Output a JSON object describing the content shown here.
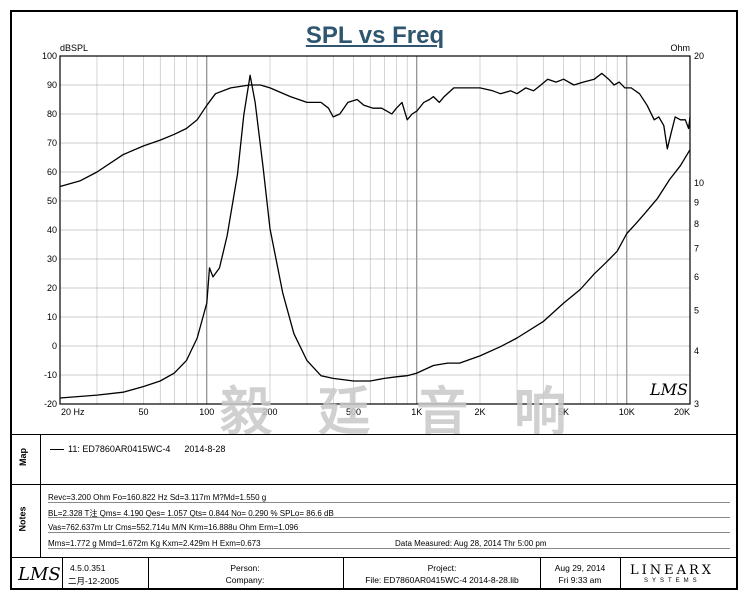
{
  "title": "SPL vs Freq",
  "chart_data": {
    "type": "line",
    "title": "SPL vs Freq",
    "left_axis": {
      "unit_label": "dBSPL",
      "min": -20,
      "max": 100,
      "ticks": [
        100,
        90,
        80,
        70,
        60,
        50,
        40,
        30,
        20,
        10,
        0,
        -10,
        -20
      ]
    },
    "right_axis": {
      "unit_label": "Ohm",
      "scale": "log",
      "min": 3,
      "max": 20,
      "tick_values": [
        20,
        10,
        9,
        8,
        7,
        6,
        5,
        4,
        3
      ]
    },
    "x_axis": {
      "scale": "log",
      "min": 20,
      "max": 20000,
      "tick_labels": [
        {
          "value": 20,
          "label": "20  Hz"
        },
        {
          "value": 50,
          "label": "50"
        },
        {
          "value": 100,
          "label": "100"
        },
        {
          "value": 200,
          "label": "200"
        },
        {
          "value": 500,
          "label": "500"
        },
        {
          "value": 1000,
          "label": "1K"
        },
        {
          "value": 2000,
          "label": "2K"
        },
        {
          "value": 5000,
          "label": "5K"
        },
        {
          "value": 10000,
          "label": "10K"
        },
        {
          "value": 20000,
          "label": "20K"
        }
      ]
    },
    "grid": true,
    "series": [
      {
        "axis": "left",
        "points": [
          [
            20,
            55
          ],
          [
            25,
            57
          ],
          [
            30,
            60
          ],
          [
            40,
            66
          ],
          [
            50,
            69
          ],
          [
            60,
            71
          ],
          [
            70,
            73
          ],
          [
            80,
            75
          ],
          [
            90,
            78
          ],
          [
            100,
            83
          ],
          [
            110,
            87
          ],
          [
            130,
            89
          ],
          [
            160,
            90
          ],
          [
            180,
            90
          ],
          [
            200,
            89
          ],
          [
            250,
            86
          ],
          [
            300,
            84
          ],
          [
            350,
            84
          ],
          [
            380,
            82
          ],
          [
            400,
            79
          ],
          [
            430,
            80
          ],
          [
            470,
            84
          ],
          [
            520,
            85
          ],
          [
            560,
            83
          ],
          [
            620,
            82
          ],
          [
            680,
            82
          ],
          [
            720,
            81
          ],
          [
            760,
            80
          ],
          [
            800,
            82
          ],
          [
            850,
            84
          ],
          [
            900,
            78
          ],
          [
            950,
            80
          ],
          [
            1000,
            81
          ],
          [
            1080,
            84
          ],
          [
            1150,
            85
          ],
          [
            1200,
            86
          ],
          [
            1280,
            84
          ],
          [
            1350,
            86
          ],
          [
            1500,
            89
          ],
          [
            1700,
            89
          ],
          [
            2000,
            89
          ],
          [
            2300,
            88
          ],
          [
            2500,
            87
          ],
          [
            2800,
            88
          ],
          [
            3000,
            87
          ],
          [
            3300,
            89
          ],
          [
            3600,
            88
          ],
          [
            3900,
            90
          ],
          [
            4200,
            92
          ],
          [
            4600,
            91
          ],
          [
            5000,
            92
          ],
          [
            5600,
            90
          ],
          [
            6200,
            91
          ],
          [
            7000,
            92
          ],
          [
            7600,
            94
          ],
          [
            8200,
            92
          ],
          [
            8700,
            90
          ],
          [
            9200,
            91
          ],
          [
            9800,
            89
          ],
          [
            10500,
            89
          ],
          [
            11500,
            87
          ],
          [
            12500,
            83
          ],
          [
            13500,
            78
          ],
          [
            14200,
            79
          ],
          [
            15000,
            76
          ],
          [
            15600,
            68
          ],
          [
            16200,
            73
          ],
          [
            17000,
            79
          ],
          [
            18000,
            78
          ],
          [
            19000,
            78
          ],
          [
            19700,
            75
          ],
          [
            20000,
            79
          ]
        ]
      },
      {
        "axis": "right",
        "points": [
          [
            20,
            3.1
          ],
          [
            30,
            3.15
          ],
          [
            40,
            3.2
          ],
          [
            50,
            3.3
          ],
          [
            60,
            3.4
          ],
          [
            70,
            3.55
          ],
          [
            80,
            3.8
          ],
          [
            90,
            4.3
          ],
          [
            100,
            5.2
          ],
          [
            103,
            6.3
          ],
          [
            107,
            6.0
          ],
          [
            115,
            6.3
          ],
          [
            125,
            7.5
          ],
          [
            140,
            10.5
          ],
          [
            150,
            14.5
          ],
          [
            160.8,
            18.0
          ],
          [
            170,
            15.5
          ],
          [
            185,
            11.0
          ],
          [
            200,
            7.8
          ],
          [
            230,
            5.5
          ],
          [
            260,
            4.4
          ],
          [
            300,
            3.8
          ],
          [
            350,
            3.5
          ],
          [
            400,
            3.45
          ],
          [
            500,
            3.4
          ],
          [
            600,
            3.4
          ],
          [
            700,
            3.45
          ],
          [
            800,
            3.48
          ],
          [
            900,
            3.5
          ],
          [
            1000,
            3.55
          ],
          [
            1200,
            3.7
          ],
          [
            1400,
            3.75
          ],
          [
            1600,
            3.75
          ],
          [
            2000,
            3.9
          ],
          [
            2500,
            4.1
          ],
          [
            3000,
            4.3
          ],
          [
            4000,
            4.7
          ],
          [
            5000,
            5.2
          ],
          [
            6000,
            5.6
          ],
          [
            7000,
            6.1
          ],
          [
            8000,
            6.5
          ],
          [
            9000,
            6.9
          ],
          [
            10000,
            7.6
          ],
          [
            11000,
            8.0
          ],
          [
            12000,
            8.4
          ],
          [
            14000,
            9.2
          ],
          [
            16000,
            10.2
          ],
          [
            18000,
            11.0
          ],
          [
            20000,
            12.0
          ]
        ]
      }
    ]
  },
  "watermark": "毅 廷 音 响",
  "plot_signature": "LMS",
  "map": {
    "label": "Map",
    "legend_entry": "11: ED7860AR0415WC-4",
    "legend_date": "2014-8-28"
  },
  "notes": {
    "label": "Notes",
    "lines": [
      "Revc=3.200 Ohm  Fo=160.822 Hz  Sd=3.117m M?Md=1.550 g",
      "BL=2.328 T注  Qms= 4.190  Qes= 1.057  Qts= 0.844  No= 0.290 %  SPLo= 86.6 dB",
      "Vas=762.637m Ltr  Cms=552.714u M/N  Krm=16.888u Ohm  Erm=1.096",
      "Mms=1.772 g  Mmd=1.672m Kg  Kxm=2.429m H  Exm=0.673"
    ],
    "data_measured": "Data Measured: Aug 28, 2014  Thr  5:00 pm"
  },
  "footer": {
    "logo": "LMS",
    "version": "4.5.0.351",
    "version_date": "二月-12-2005",
    "person_label": "Person:",
    "company_label": "Company:",
    "project_label": "Project:",
    "project_file": "File: ED7860AR0415WC-4    2014-8-28.lib",
    "date": "Aug 29, 2014",
    "time": "Fri  9:33 am",
    "brand": "LINEARX",
    "brand_sub": "SYSTEMS"
  }
}
